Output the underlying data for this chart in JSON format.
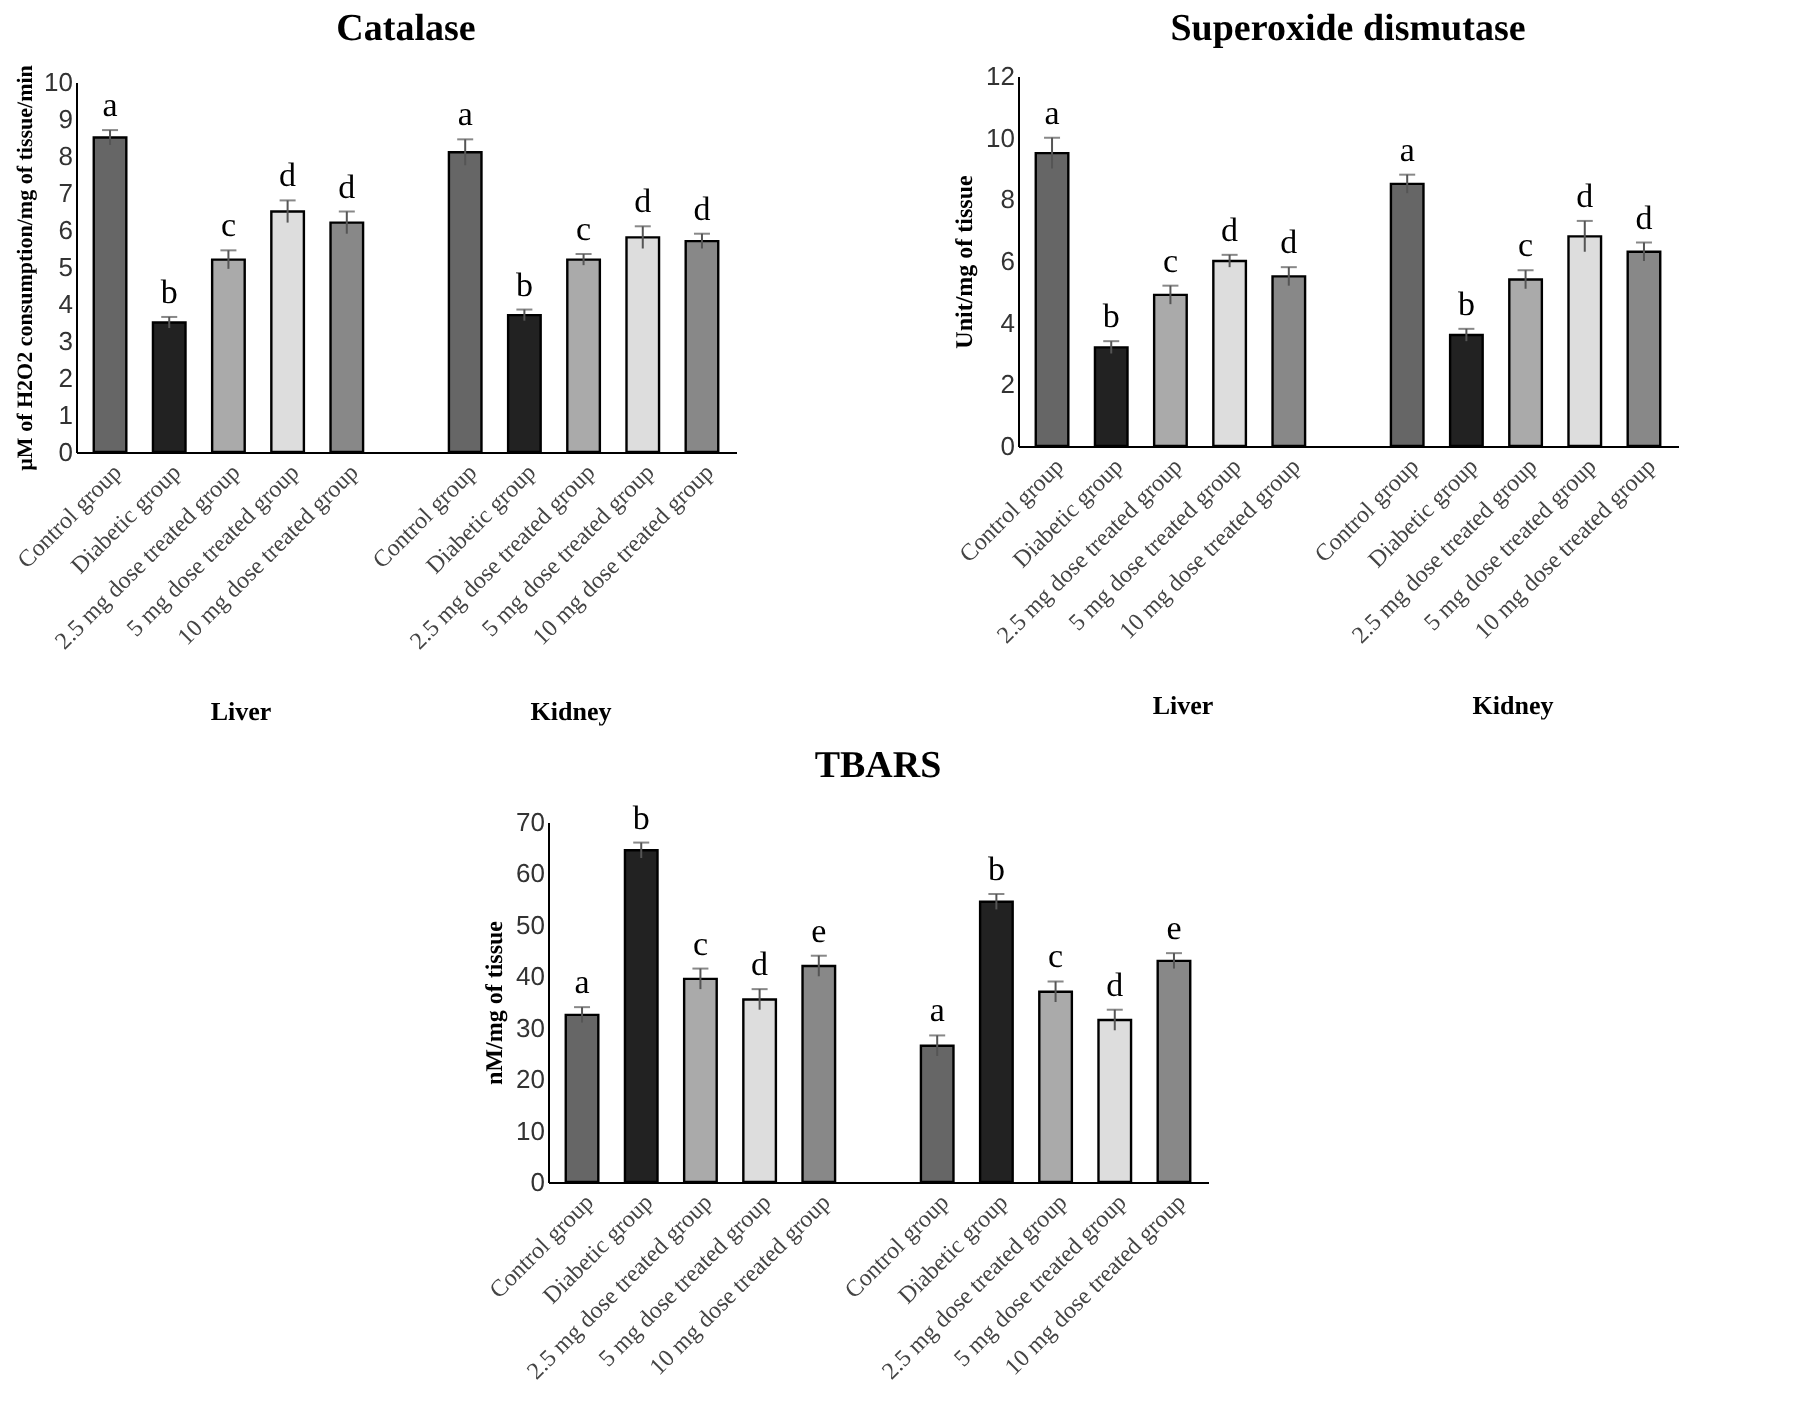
{
  "chart_data": [
    {
      "type": "bar",
      "title": "Catalase",
      "ylabel": "µM of H2O2 consumption/mg of tissue/min",
      "categories": [
        "Control group",
        "Diabetic group",
        "2.5 mg dose treated group",
        "5 mg dose treated group",
        "10 mg dose treated group",
        null,
        "Control group",
        "Diabetic group",
        "2.5 mg dose treated group",
        "5 mg dose treated group",
        "10 mg dose treated group"
      ],
      "values": [
        8.5,
        3.5,
        5.2,
        6.5,
        6.2,
        null,
        8.1,
        3.7,
        5.2,
        5.8,
        5.7
      ],
      "errors": [
        0.2,
        0.15,
        0.25,
        0.3,
        0.3,
        null,
        0.35,
        0.15,
        0.15,
        0.3,
        0.2
      ],
      "value_labels": [
        "a",
        "b",
        "c",
        "d",
        "d",
        null,
        "a",
        "b",
        "c",
        "d",
        "d"
      ],
      "colors": [
        "#666666",
        "#222222",
        "#aaaaaa",
        "#dddddd",
        "#888888",
        null,
        "#666666",
        "#222222",
        "#aaaaaa",
        "#dddddd",
        "#888888"
      ],
      "ylim": [
        0,
        10
      ],
      "yticks": [
        0,
        1,
        2,
        3,
        4,
        5,
        6,
        7,
        8,
        9,
        10
      ],
      "annotations": [
        "Liver",
        "Kidney"
      ]
    },
    {
      "type": "bar",
      "title": "Superoxide dismutase",
      "ylabel": "Unit/mg of tissue",
      "categories": [
        "Control group",
        "Diabetic group",
        "2.5 mg dose treated group",
        "5 mg dose treated group",
        "10 mg dose treated group",
        null,
        "Control group",
        "Diabetic group",
        "2.5 mg dose treated group",
        "5 mg dose treated group",
        "10 mg dose treated group"
      ],
      "values": [
        9.5,
        3.2,
        4.9,
        6.0,
        5.5,
        null,
        8.5,
        3.6,
        5.4,
        6.8,
        6.3
      ],
      "errors": [
        0.5,
        0.2,
        0.3,
        0.2,
        0.3,
        null,
        0.3,
        0.2,
        0.3,
        0.5,
        0.3
      ],
      "value_labels": [
        "a",
        "b",
        "c",
        "d",
        "d",
        null,
        "a",
        "b",
        "c",
        "d",
        "d"
      ],
      "colors": [
        "#666666",
        "#222222",
        "#aaaaaa",
        "#dddddd",
        "#888888",
        null,
        "#666666",
        "#222222",
        "#aaaaaa",
        "#dddddd",
        "#888888"
      ],
      "ylim": [
        0,
        12
      ],
      "yticks": [
        0,
        2,
        4,
        6,
        8,
        10,
        12
      ],
      "annotations": [
        "Liver",
        "Kidney"
      ]
    },
    {
      "type": "bar",
      "title": "TBARS",
      "ylabel": "nM/mg of tissue",
      "categories": [
        "Control group",
        "Diabetic group",
        "2.5 mg dose treated group",
        "5 mg dose treated group",
        "10 mg dose treated group",
        null,
        "Control group",
        "Diabetic group",
        "2.5 mg dose treated group",
        "5 mg dose treated group",
        "10 mg dose treated group"
      ],
      "values": [
        32.5,
        64.5,
        39.5,
        35.5,
        42,
        null,
        26.5,
        54.5,
        37,
        31.5,
        43
      ],
      "errors": [
        1.5,
        1.5,
        2,
        2,
        2,
        null,
        2,
        1.5,
        2,
        2,
        1.5
      ],
      "value_labels": [
        "a",
        "b",
        "c",
        "d",
        "e",
        null,
        "a",
        "b",
        "c",
        "d",
        "e"
      ],
      "colors": [
        "#666666",
        "#222222",
        "#aaaaaa",
        "#dddddd",
        "#888888",
        null,
        "#666666",
        "#222222",
        "#aaaaaa",
        "#dddddd",
        "#888888"
      ],
      "ylim": [
        0,
        70
      ],
      "yticks": [
        0,
        10,
        20,
        30,
        40,
        50,
        60,
        70
      ]
    }
  ]
}
